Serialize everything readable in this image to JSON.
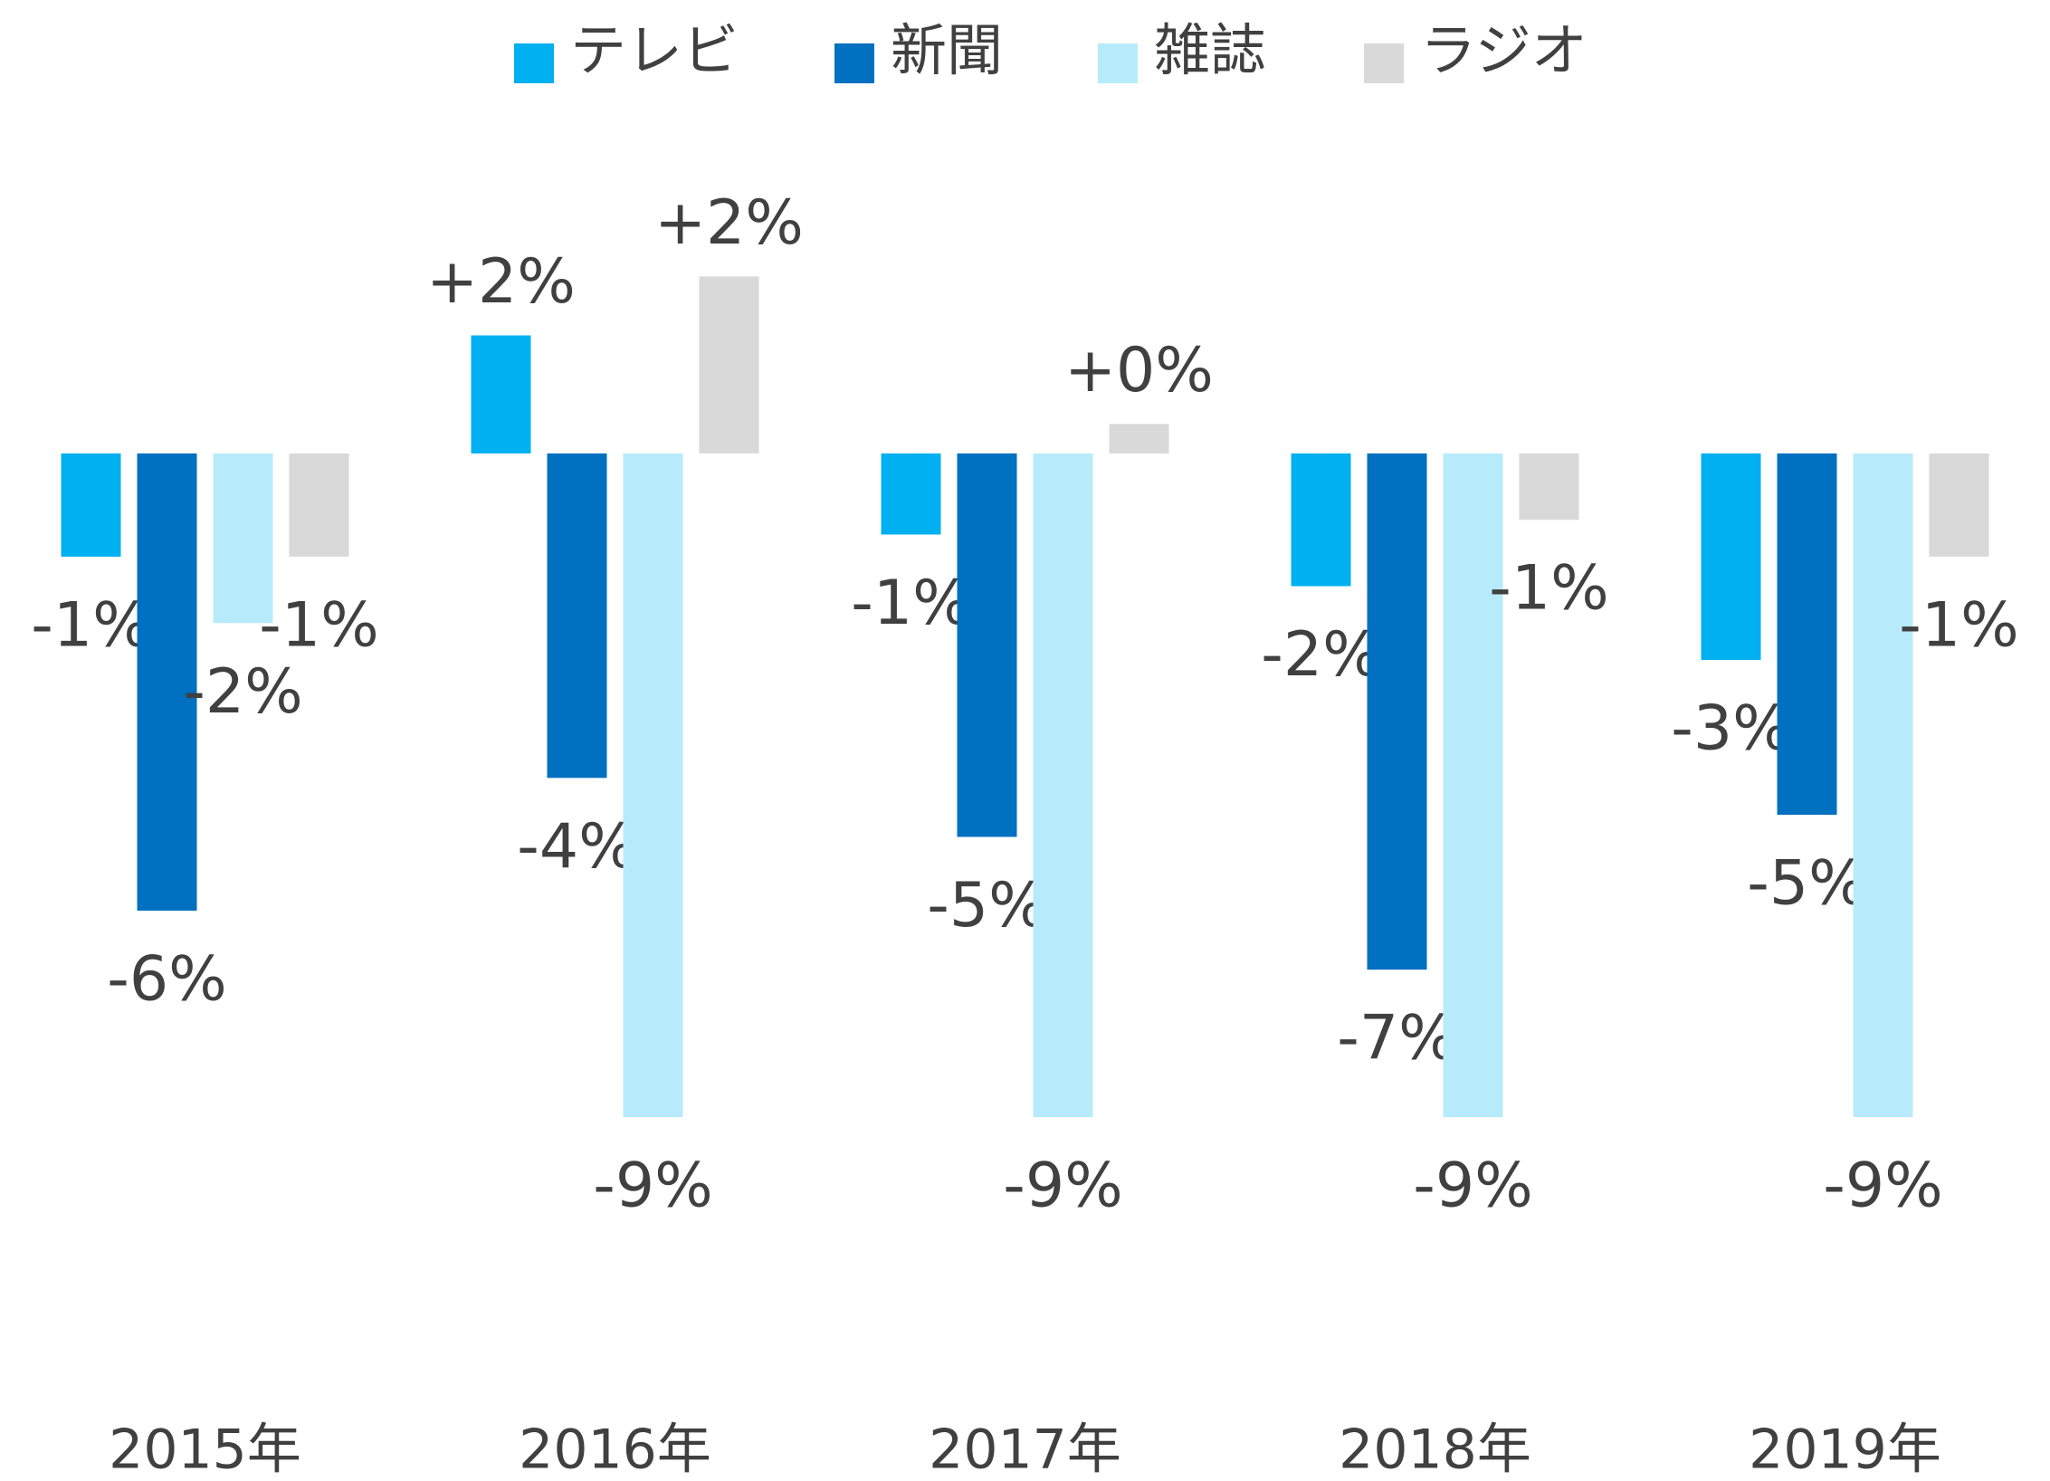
{
  "chart_data": {
    "type": "bar",
    "categories": [
      "2015年",
      "2016年",
      "2017年",
      "2018年",
      "2019年"
    ],
    "series": [
      {
        "name": "テレビ",
        "color": "#00b0f0",
        "values": [
          -1.4,
          1.6,
          -1.1,
          -1.8,
          -2.8
        ],
        "value_labels": [
          "-1%",
          "+2%",
          "-1%",
          "-2%",
          "-3%"
        ]
      },
      {
        "name": "新聞",
        "color": "#0070c0",
        "values": [
          -6.2,
          -4.4,
          -5.2,
          -7.0,
          -4.9
        ],
        "value_labels": [
          "-6%",
          "-4%",
          "-5%",
          "-7%",
          "-5%"
        ]
      },
      {
        "name": "雑誌",
        "color": "#b7ebfb",
        "values": [
          -2.3,
          -9.0,
          -9.0,
          -9.0,
          -9.0
        ],
        "value_labels": [
          "-2%",
          "-9%",
          "-9%",
          "-9%",
          "-9%"
        ]
      },
      {
        "name": "ラジオ",
        "color": "#d9d9d9",
        "values": [
          -1.4,
          2.4,
          0.4,
          -0.9,
          -1.4
        ],
        "value_labels": [
          "-1%",
          "+2%",
          "+0%",
          "-1%",
          "-1%"
        ]
      }
    ],
    "ylim": [
      -11,
      4
    ],
    "legend": "top"
  }
}
